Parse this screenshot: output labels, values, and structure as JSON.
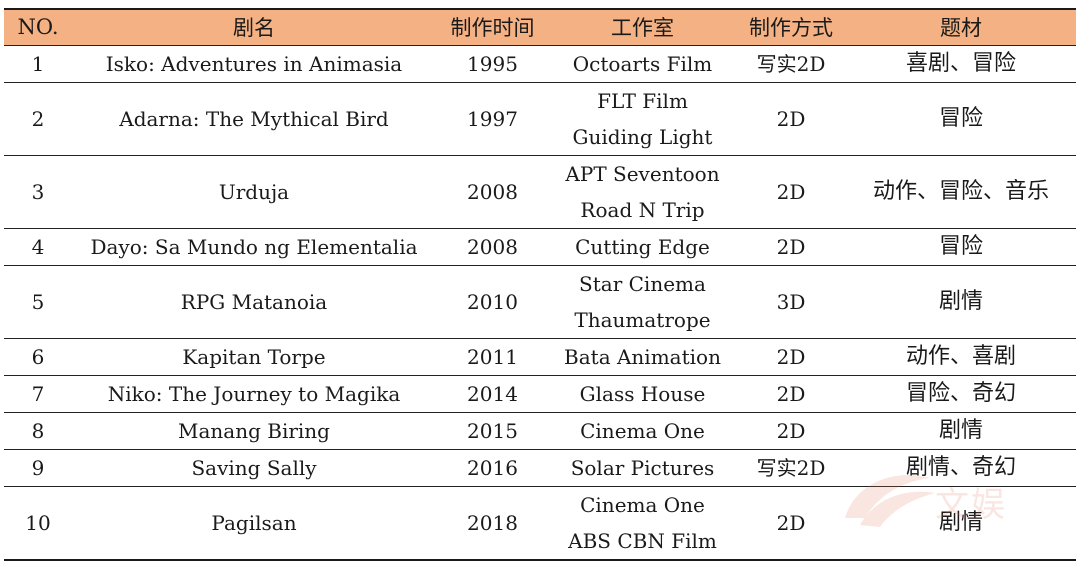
{
  "header": {
    "no": "NO.",
    "name": "剧名",
    "year": "制作时间",
    "studio": "工作室",
    "method": "制作方式",
    "genre": "题材"
  },
  "rows": [
    {
      "no": "1",
      "name": "Isko: Adventures in Animasia",
      "year": "1995",
      "studio": [
        "Octoarts Film"
      ],
      "method": "写实2D",
      "genre": "喜剧、冒险"
    },
    {
      "no": "2",
      "name": "Adarna: The Mythical Bird",
      "year": "1997",
      "studio": [
        "FLT Film",
        "Guiding Light"
      ],
      "method": "2D",
      "genre": "冒险"
    },
    {
      "no": "3",
      "name": "Urduja",
      "year": "2008",
      "studio": [
        "APT Seventoon",
        "Road N Trip"
      ],
      "method": "2D",
      "genre": "动作、冒险、音乐"
    },
    {
      "no": "4",
      "name": "Dayo: Sa Mundo ng Elementalia",
      "year": "2008",
      "studio": [
        "Cutting Edge"
      ],
      "method": "2D",
      "genre": "冒险"
    },
    {
      "no": "5",
      "name": "RPG Matanoia",
      "year": "2010",
      "studio": [
        "Star Cinema",
        "Thaumatrope"
      ],
      "method": "3D",
      "genre": "剧情"
    },
    {
      "no": "6",
      "name": "Kapitan Torpe",
      "year": "2011",
      "studio": [
        "Bata Animation"
      ],
      "method": "2D",
      "genre": "动作、喜剧"
    },
    {
      "no": "7",
      "name": "Niko: The Journey to Magika",
      "year": "2014",
      "studio": [
        "Glass House"
      ],
      "method": "2D",
      "genre": "冒险、奇幻"
    },
    {
      "no": "8",
      "name": "Manang Biring",
      "year": "2015",
      "studio": [
        "Cinema One"
      ],
      "method": "2D",
      "genre": "剧情"
    },
    {
      "no": "9",
      "name": "Saving Sally",
      "year": "2016",
      "studio": [
        "Solar Pictures"
      ],
      "method": "写实2D",
      "genre": "剧情、奇幻"
    },
    {
      "no": "10",
      "name": "Pagilsan",
      "year": "2018",
      "studio": [
        "Cinema One",
        "ABS CBN Film"
      ],
      "method": "2D",
      "genre": "剧情"
    }
  ],
  "watermark": {
    "text": "文娱",
    "color": "#e8795a"
  },
  "colors": {
    "header_bg": "#f4b183"
  }
}
